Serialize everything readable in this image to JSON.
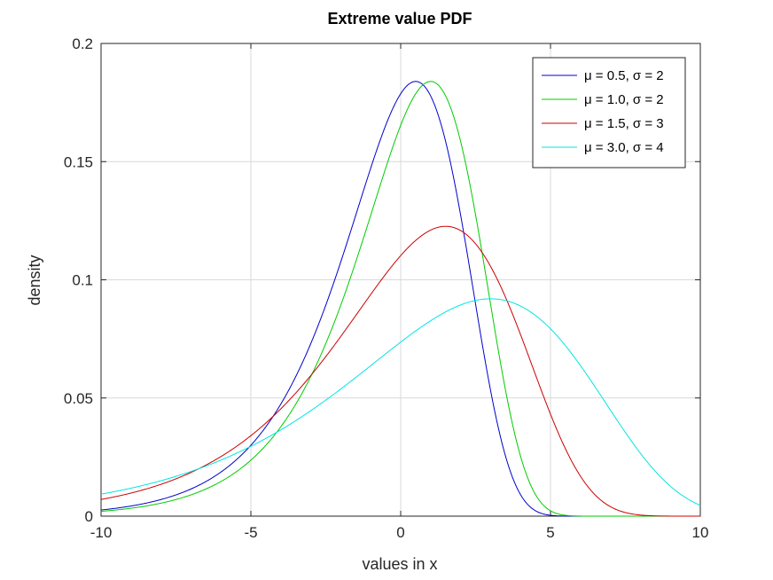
{
  "chart_data": {
    "type": "line",
    "title": "Extreme value PDF",
    "xlabel": "values in x",
    "ylabel": "density",
    "xlim": [
      -10,
      10
    ],
    "ylim": [
      0,
      0.2
    ],
    "xticks": [
      -10,
      -5,
      0,
      5,
      10
    ],
    "xtick_labels": [
      "-10",
      "-5",
      "0",
      "5",
      "10"
    ],
    "yticks": [
      0,
      0.05,
      0.1,
      0.15,
      0.2
    ],
    "ytick_labels": [
      "0",
      "0.05",
      "0.1",
      "0.15",
      "0.2"
    ],
    "grid": true,
    "legend_position": "top-right",
    "series": [
      {
        "name": "μ = 0.5, σ = 2",
        "mu": 0.5,
        "sigma": 2,
        "color": "#0000cc"
      },
      {
        "name": "μ = 1.0, σ = 2",
        "mu": 1.0,
        "sigma": 2,
        "color": "#00cc00"
      },
      {
        "name": "μ = 1.5, σ = 3",
        "mu": 1.5,
        "sigma": 3,
        "color": "#cc0000"
      },
      {
        "name": "μ = 3.0, σ = 4",
        "mu": 3.0,
        "sigma": 4,
        "color": "#00e5e5"
      }
    ]
  }
}
